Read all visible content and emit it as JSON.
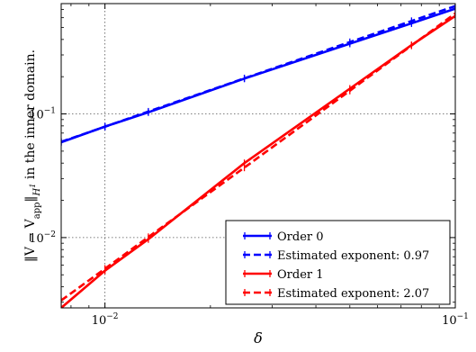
{
  "chart_data": {
    "type": "line",
    "xscale": "log",
    "yscale": "log",
    "xlim": [
      0.0075,
      0.1
    ],
    "ylim": [
      0.0027,
      0.78
    ],
    "grid": true,
    "legend_position": "lower-right",
    "xlabel": "δ",
    "ylabel": "‖V − V_app‖_{H¹} in the inner domain.",
    "ylabel_parts": {
      "pre": "‖V − V",
      "sub": "app",
      "mid": "‖",
      "hsub": "H",
      "hsup": "1",
      "post": " in the inner domain."
    },
    "x_ticks": [
      {
        "value": 0.01,
        "base": "10",
        "exp": "−2"
      },
      {
        "value": 0.1,
        "base": "10",
        "exp": "−1"
      }
    ],
    "y_ticks": [
      {
        "value": 0.01,
        "base": "10",
        "exp": "−2"
      },
      {
        "value": 0.1,
        "base": "10",
        "exp": "−1"
      }
    ],
    "series": [
      {
        "name": "Order 0",
        "color": "#0000ff",
        "style": "solid",
        "x": [
          0.0075,
          0.01,
          0.0133,
          0.025,
          0.05,
          0.075,
          0.1
        ],
        "y": [
          0.059,
          0.079,
          0.103,
          0.193,
          0.37,
          0.54,
          0.71
        ]
      },
      {
        "name": "Estimated exponent: 0.97",
        "color": "#0000ff",
        "style": "dashed",
        "x": [
          0.0075,
          0.01,
          0.0133,
          0.025,
          0.05,
          0.075,
          0.1
        ],
        "y": [
          0.0595,
          0.0788,
          0.1045,
          0.194,
          0.381,
          0.564,
          0.745
        ]
      },
      {
        "name": "Order 1",
        "color": "#ff0000",
        "style": "solid",
        "x": [
          0.0075,
          0.01,
          0.0133,
          0.025,
          0.05,
          0.075,
          0.1
        ],
        "y": [
          0.0027,
          0.0054,
          0.0097,
          0.04,
          0.16,
          0.36,
          0.62
        ]
      },
      {
        "name": "Estimated exponent: 2.07",
        "color": "#ff0000",
        "style": "dashed",
        "x": [
          0.0075,
          0.01,
          0.0133,
          0.025,
          0.05,
          0.075,
          0.1
        ],
        "y": [
          0.0031,
          0.0056,
          0.0101,
          0.0368,
          0.154,
          0.357,
          0.65
        ]
      }
    ],
    "legend": [
      {
        "label": "Order 0",
        "color": "#0000ff",
        "style": "solid"
      },
      {
        "label": "Estimated exponent: 0.97",
        "color": "#0000ff",
        "style": "dashed"
      },
      {
        "label": "Order 1",
        "color": "#ff0000",
        "style": "solid"
      },
      {
        "label": "Estimated exponent: 2.07",
        "color": "#ff0000",
        "style": "dashed"
      }
    ]
  }
}
